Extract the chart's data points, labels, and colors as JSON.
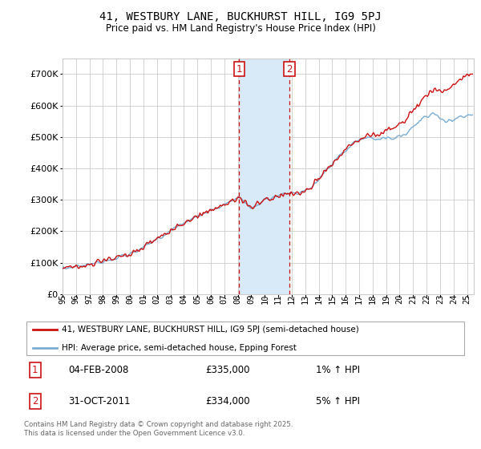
{
  "title": "41, WESTBURY LANE, BUCKHURST HILL, IG9 5PJ",
  "subtitle": "Price paid vs. HM Land Registry's House Price Index (HPI)",
  "ylim": [
    0,
    750000
  ],
  "yticks": [
    0,
    100000,
    200000,
    300000,
    400000,
    500000,
    600000,
    700000
  ],
  "ytick_labels": [
    "£0",
    "£100K",
    "£200K",
    "£300K",
    "£400K",
    "£500K",
    "£600K",
    "£700K"
  ],
  "hpi_color": "#7aadd4",
  "price_color": "#cc1111",
  "marker1_date_x": 2008.1,
  "marker2_date_x": 2011.83,
  "shade_color": "#d8eaf7",
  "marker_box_color": "#cc1111",
  "legend_entry1": "41, WESTBURY LANE, BUCKHURST HILL, IG9 5PJ (semi-detached house)",
  "legend_entry2": "HPI: Average price, semi-detached house, Epping Forest",
  "annotation1_date": "04-FEB-2008",
  "annotation1_price_str": "£335,000",
  "annotation1_hpi": "1% ↑ HPI",
  "annotation2_date": "31-OCT-2011",
  "annotation2_price_str": "£334,000",
  "annotation2_hpi": "5% ↑ HPI",
  "footer": "Contains HM Land Registry data © Crown copyright and database right 2025.\nThis data is licensed under the Open Government Licence v3.0.",
  "background_color": "#ffffff",
  "grid_color": "#cccccc",
  "xlim_start": 1995,
  "xlim_end": 2025.5
}
